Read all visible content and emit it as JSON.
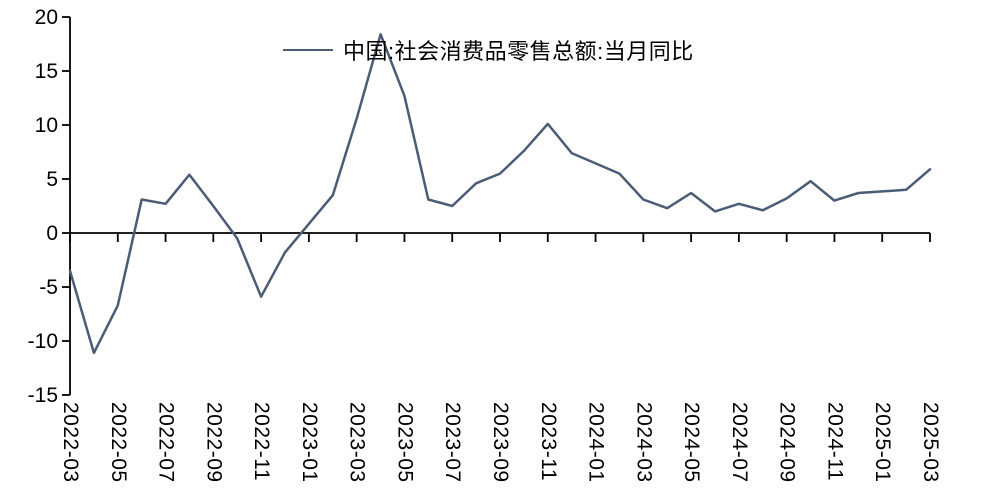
{
  "chart_data": {
    "type": "line",
    "title": "",
    "legend": "中国:社会消费品零售总额:当月同比",
    "legend_position": "top-center",
    "grid": "off",
    "colors": {
      "line": "#4b5c77",
      "axis": "#000000",
      "text": "#000000",
      "background": "#ffffff"
    },
    "y_axis": {
      "min": -15,
      "max": 20,
      "tick_step": 5,
      "ticks": [
        20,
        15,
        10,
        5,
        0,
        -5,
        -10,
        -15
      ]
    },
    "x_axis": {
      "tick_every_n_months": 2,
      "tick_labels": [
        "2022-03",
        "2022-05",
        "2022-07",
        "2022-09",
        "2022-11",
        "2023-01",
        "2023-03",
        "2023-05",
        "2023-07",
        "2023-09",
        "2023-11",
        "2024-01",
        "2024-03",
        "2024-05",
        "2024-07",
        "2024-09",
        "2024-11",
        "2025-01",
        "2025-03"
      ]
    },
    "points": [
      {
        "month": "2022-03",
        "value": -3.5
      },
      {
        "month": "2022-04",
        "value": -11.1
      },
      {
        "month": "2022-05",
        "value": -6.7
      },
      {
        "month": "2022-06",
        "value": 3.1
      },
      {
        "month": "2022-07",
        "value": 2.7
      },
      {
        "month": "2022-08",
        "value": 5.4
      },
      {
        "month": "2022-09",
        "value": 2.5
      },
      {
        "month": "2022-10",
        "value": -0.5
      },
      {
        "month": "2022-11",
        "value": -5.9
      },
      {
        "month": "2022-12",
        "value": -1.8
      },
      {
        "month": "2023-01",
        "value": null
      },
      {
        "month": "2023-02",
        "value": 3.5
      },
      {
        "month": "2023-03",
        "value": 10.6
      },
      {
        "month": "2023-04",
        "value": 18.4
      },
      {
        "month": "2023-05",
        "value": 12.7
      },
      {
        "month": "2023-06",
        "value": 3.1
      },
      {
        "month": "2023-07",
        "value": 2.5
      },
      {
        "month": "2023-08",
        "value": 4.6
      },
      {
        "month": "2023-09",
        "value": 5.5
      },
      {
        "month": "2023-10",
        "value": 7.6
      },
      {
        "month": "2023-11",
        "value": 10.1
      },
      {
        "month": "2023-12",
        "value": 7.4
      },
      {
        "month": "2024-01",
        "value": null
      },
      {
        "month": "2024-02",
        "value": 5.5
      },
      {
        "month": "2024-03",
        "value": 3.1
      },
      {
        "month": "2024-04",
        "value": 2.3
      },
      {
        "month": "2024-05",
        "value": 3.7
      },
      {
        "month": "2024-06",
        "value": 2.0
      },
      {
        "month": "2024-07",
        "value": 2.7
      },
      {
        "month": "2024-08",
        "value": 2.1
      },
      {
        "month": "2024-09",
        "value": 3.2
      },
      {
        "month": "2024-10",
        "value": 4.8
      },
      {
        "month": "2024-11",
        "value": 3.0
      },
      {
        "month": "2024-12",
        "value": 3.7
      },
      {
        "month": "2025-01",
        "value": null
      },
      {
        "month": "2025-02",
        "value": 4.0
      },
      {
        "month": "2025-03",
        "value": 5.9
      }
    ]
  }
}
